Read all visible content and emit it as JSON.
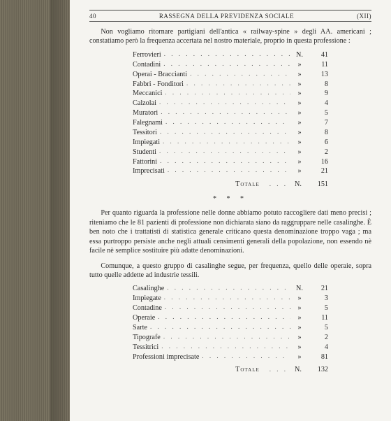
{
  "header": {
    "page_no": "40",
    "title": "RASSEGNA DELLA PREVIDENZA SOCIALE",
    "sig": "(XII)"
  },
  "para1": "Non vogliamo ritornare partigiani dell'antica « railway-spine » degli AA. americani ; constatiamo però la frequenza accertata nel nostro materiale, proprio in questa professione :",
  "table1": {
    "unit_first": "N.",
    "unit_rest": "»",
    "rows": [
      {
        "label": "Ferrovieri",
        "val": "41"
      },
      {
        "label": "Contadini",
        "val": "11"
      },
      {
        "label": "Operai - Braccianti",
        "val": "13"
      },
      {
        "label": "Fabbri - Fonditori",
        "val": "8"
      },
      {
        "label": "Meccanici",
        "val": "9"
      },
      {
        "label": "Calzolai",
        "val": "4"
      },
      {
        "label": "Muratori",
        "val": "5"
      },
      {
        "label": "Falegnami",
        "val": "7"
      },
      {
        "label": "Tessitori",
        "val": "8"
      },
      {
        "label": "Impiegati",
        "val": "6"
      },
      {
        "label": "Studenti",
        "val": "2"
      },
      {
        "label": "Fattorini",
        "val": "16"
      },
      {
        "label": "Imprecisati",
        "val": "21"
      }
    ],
    "total_label": "Totale",
    "total_unit": "N.",
    "total_val": "151"
  },
  "stars": "* * *",
  "para2": "Per quanto riguarda la professione nelle donne abbiamo potuto raccogliere dati meno precisi ; riteniamo che le 81 pazienti di professione non dichiarata siano da raggruppare nelle casalinghe. È ben noto che i trattatisti di statistica generale criticano questa denominazione troppo vaga ; ma essa purtroppo persiste anche negli attuali censimenti generali della popolazione, non essendo nè facile nè semplice sostituire più adatte denominazioni.",
  "para3": "Comunque, a questo gruppo di casalinghe segue, per frequenza, quello delle operaie, sopra tutto quelle addette ad industrie tessili.",
  "table2": {
    "unit_first": "N.",
    "unit_rest": "»",
    "rows": [
      {
        "label": "Casalinghe",
        "val": "21"
      },
      {
        "label": "Impiegate",
        "val": "3"
      },
      {
        "label": "Contadine",
        "val": "5"
      },
      {
        "label": "Operaie",
        "val": "11"
      },
      {
        "label": "Sarte",
        "val": "5"
      },
      {
        "label": "Tipografe",
        "val": "2"
      },
      {
        "label": "Tessitrici",
        "val": "4"
      },
      {
        "label": "Professioni imprecisate",
        "val": "81"
      }
    ],
    "total_label": "Totale",
    "total_unit": "N.",
    "total_val": "132"
  }
}
